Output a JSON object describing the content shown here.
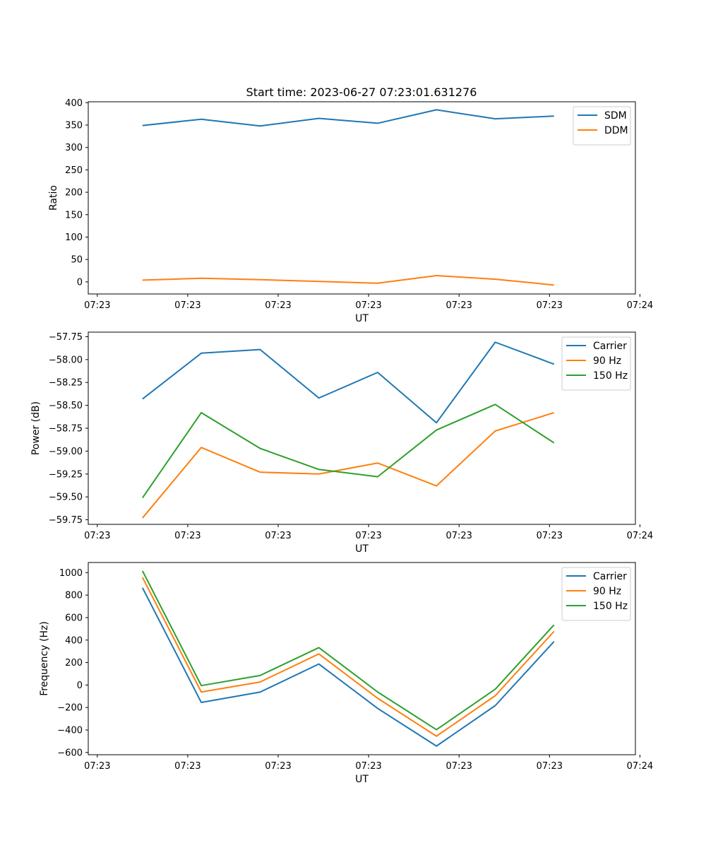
{
  "chart_data": [
    {
      "type": "line",
      "title": "Start time: 2023-06-27 07:23:01.631276",
      "xlabel": "UT",
      "ylabel": "Ratio",
      "x_tick_labels": [
        "07:23",
        "07:23",
        "07:23",
        "07:23",
        "07:23",
        "07:23",
        "07:24"
      ],
      "x": [
        0.5,
        1.15,
        1.8,
        2.45,
        3.1,
        3.75,
        4.4,
        5.05
      ],
      "xlim": [
        -0.1,
        5.95
      ],
      "ylim": [
        -27,
        402
      ],
      "y_ticks": [
        0,
        50,
        100,
        150,
        200,
        250,
        300,
        350,
        400
      ],
      "legend_position": "upper right",
      "series": [
        {
          "name": "SDM",
          "color": "#1f77b4",
          "values": [
            349,
            363,
            348,
            365,
            354,
            384,
            364,
            370
          ]
        },
        {
          "name": "DDM",
          "color": "#ff7f0e",
          "values": [
            4,
            8,
            5,
            1,
            -3,
            14,
            6,
            -7
          ]
        }
      ]
    },
    {
      "type": "line",
      "title": "",
      "xlabel": "UT",
      "ylabel": "Power (dB)",
      "x_tick_labels": [
        "07:23",
        "07:23",
        "07:23",
        "07:23",
        "07:23",
        "07:23",
        "07:24"
      ],
      "x": [
        0.5,
        1.15,
        1.8,
        2.45,
        3.1,
        3.75,
        4.4,
        5.05
      ],
      "xlim": [
        -0.1,
        5.95
      ],
      "ylim": [
        -59.8,
        -57.7
      ],
      "y_ticks": [
        -59.75,
        -59.5,
        -59.25,
        -59.0,
        -58.75,
        -58.5,
        -58.25,
        -58.0,
        -57.75
      ],
      "y_tick_labels": [
        "−59.75",
        "−59.50",
        "−59.25",
        "−59.00",
        "−58.75",
        "−58.50",
        "−58.25",
        "−58.00",
        "−57.75"
      ],
      "legend_position": "upper right",
      "series": [
        {
          "name": "Carrier",
          "color": "#1f77b4",
          "values": [
            -58.43,
            -57.93,
            -57.89,
            -58.42,
            -58.14,
            -58.69,
            -57.81,
            -58.05
          ]
        },
        {
          "name": "90 Hz",
          "color": "#ff7f0e",
          "values": [
            -59.73,
            -58.96,
            -59.23,
            -59.25,
            -59.13,
            -59.38,
            -58.78,
            -58.58
          ]
        },
        {
          "name": "150 Hz",
          "color": "#2ca02c",
          "values": [
            -59.51,
            -58.58,
            -58.97,
            -59.2,
            -59.28,
            -58.77,
            -58.49,
            -58.91
          ]
        }
      ]
    },
    {
      "type": "line",
      "title": "",
      "xlabel": "UT",
      "ylabel": "Frequency (Hz)",
      "x_tick_labels": [
        "07:23",
        "07:23",
        "07:23",
        "07:23",
        "07:23",
        "07:23",
        "07:24"
      ],
      "x": [
        0.5,
        1.15,
        1.8,
        2.45,
        3.1,
        3.75,
        4.4,
        5.05
      ],
      "xlim": [
        -0.1,
        5.95
      ],
      "ylim": [
        -620,
        1090
      ],
      "y_ticks": [
        -600,
        -400,
        -200,
        0,
        200,
        400,
        600,
        800,
        1000
      ],
      "y_tick_labels": [
        "−600",
        "−400",
        "−200",
        "0",
        "200",
        "400",
        "600",
        "800",
        "1000"
      ],
      "legend_position": "upper right",
      "series": [
        {
          "name": "Carrier",
          "color": "#1f77b4",
          "values": [
            865,
            -155,
            -63,
            187,
            -208,
            -543,
            -183,
            387
          ]
        },
        {
          "name": "90 Hz",
          "color": "#ff7f0e",
          "values": [
            957,
            -62,
            27,
            277,
            -118,
            -455,
            -95,
            477
          ]
        },
        {
          "name": "150 Hz",
          "color": "#2ca02c",
          "values": [
            1015,
            -5,
            85,
            333,
            -62,
            -397,
            -37,
            535
          ]
        }
      ]
    }
  ]
}
